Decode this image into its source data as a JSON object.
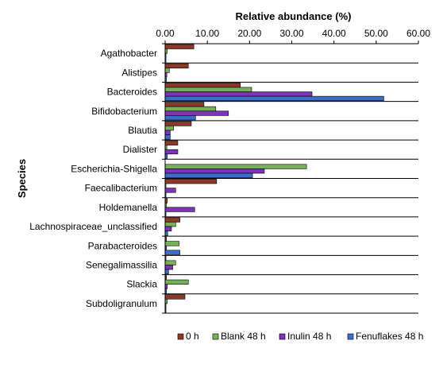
{
  "chart_data": {
    "type": "bar",
    "orientation": "horizontal",
    "title": "",
    "xlabel": "Relative abundance (%)",
    "ylabel": "Species",
    "xlim": [
      0,
      60
    ],
    "xticks": [
      "0.00",
      "10.00",
      "20.00",
      "30.00",
      "40.00",
      "50.00",
      "60.00"
    ],
    "grid": true,
    "legend_position": "bottom",
    "categories": [
      "Agathobacter",
      "Alistipes",
      "Bacteroides",
      "Bifidobacterium",
      "Blautia",
      "Dialister",
      "Escherichia-Shigella",
      "Faecalibacterium",
      "Holdemanella",
      "Lachnospiraceae_unclassified",
      "Parabacteroides",
      "Senegalimassilia",
      "Slackia",
      "Subdoligranulum"
    ],
    "series": [
      {
        "name": "0 h",
        "color": "#8B3A2A",
        "values": [
          6.8,
          5.5,
          17.8,
          9.2,
          6.2,
          3.0,
          0.0,
          12.2,
          0.5,
          3.5,
          0.3,
          0.2,
          0.3,
          4.7
        ]
      },
      {
        "name": "Blank 48 h",
        "color": "#77B05A",
        "values": [
          0.5,
          1.0,
          20.5,
          12.0,
          2.0,
          0.4,
          33.5,
          0.2,
          0.3,
          2.5,
          3.3,
          2.5,
          5.5,
          0.5
        ]
      },
      {
        "name": "Inulin 48 h",
        "color": "#7B35B5",
        "values": [
          0.2,
          0.4,
          34.8,
          15.0,
          1.2,
          3.0,
          23.5,
          2.5,
          7.0,
          1.5,
          0.3,
          1.8,
          0.5,
          0.2
        ]
      },
      {
        "name": "Fenuflakes 48 h",
        "color": "#3C6EC8",
        "values": [
          0.2,
          0.3,
          51.8,
          7.2,
          1.2,
          0.5,
          20.7,
          0.2,
          0.2,
          0.6,
          3.5,
          0.8,
          0.3,
          0.2
        ]
      }
    ]
  }
}
